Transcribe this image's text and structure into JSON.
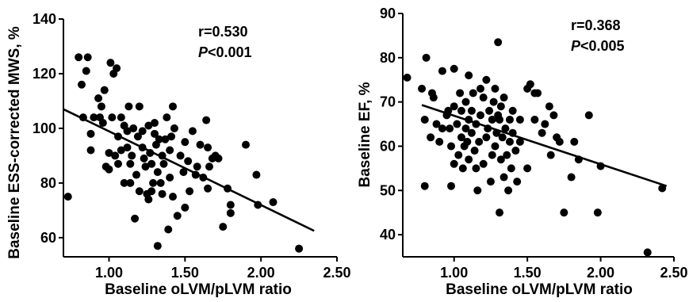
{
  "chart_data": [
    {
      "type": "scatter",
      "xlabel": "Baseline oLVM/pLVM ratio",
      "ylabel": "Baseline ESS-corrected MWS, %",
      "xlim": [
        0.7,
        2.5
      ],
      "ylim": [
        53,
        140
      ],
      "xticks": [
        "1.00",
        "1.50",
        "2.00",
        "2.50"
      ],
      "yticks": [
        "60",
        "80",
        "100",
        "120",
        "140"
      ],
      "annotation": {
        "r": "r=0.530",
        "p_italic": "P",
        "p_rest": "<0.001"
      },
      "trend_line": {
        "x": [
          0.7,
          2.35
        ],
        "y": [
          107,
          62.5
        ]
      },
      "points": [
        [
          0.73,
          75
        ],
        [
          0.8,
          126
        ],
        [
          0.82,
          116
        ],
        [
          0.83,
          104
        ],
        [
          0.85,
          121
        ],
        [
          0.86,
          126
        ],
        [
          0.88,
          98
        ],
        [
          0.88,
          92
        ],
        [
          0.9,
          104
        ],
        [
          0.93,
          111
        ],
        [
          0.94,
          104
        ],
        [
          0.95,
          108
        ],
        [
          0.96,
          102
        ],
        [
          0.97,
          114
        ],
        [
          0.98,
          86
        ],
        [
          1.0,
          91
        ],
        [
          1.0,
          85
        ],
        [
          1.01,
          124
        ],
        [
          1.02,
          104
        ],
        [
          1.03,
          120
        ],
        [
          1.04,
          90
        ],
        [
          1.05,
          122
        ],
        [
          1.06,
          87
        ],
        [
          1.06,
          97
        ],
        [
          1.08,
          104
        ],
        [
          1.08,
          92
        ],
        [
          1.1,
          101
        ],
        [
          1.1,
          80
        ],
        [
          1.12,
          99
        ],
        [
          1.12,
          93
        ],
        [
          1.13,
          108
        ],
        [
          1.14,
          87
        ],
        [
          1.14,
          80
        ],
        [
          1.15,
          90
        ],
        [
          1.16,
          100
        ],
        [
          1.17,
          67
        ],
        [
          1.18,
          83
        ],
        [
          1.19,
          97
        ],
        [
          1.2,
          108
        ],
        [
          1.2,
          77
        ],
        [
          1.22,
          99
        ],
        [
          1.22,
          93
        ],
        [
          1.23,
          89
        ],
        [
          1.24,
          86
        ],
        [
          1.25,
          76
        ],
        [
          1.26,
          74
        ],
        [
          1.26,
          101
        ],
        [
          1.27,
          91
        ],
        [
          1.28,
          87
        ],
        [
          1.28,
          77
        ],
        [
          1.29,
          80
        ],
        [
          1.3,
          102
        ],
        [
          1.3,
          98
        ],
        [
          1.31,
          94
        ],
        [
          1.32,
          57
        ],
        [
          1.32,
          84
        ],
        [
          1.33,
          96
        ],
        [
          1.34,
          80
        ],
        [
          1.35,
          76
        ],
        [
          1.35,
          90
        ],
        [
          1.36,
          87
        ],
        [
          1.37,
          96
        ],
        [
          1.38,
          104
        ],
        [
          1.39,
          63
        ],
        [
          1.4,
          92
        ],
        [
          1.4,
          82
        ],
        [
          1.41,
          97
        ],
        [
          1.42,
          108
        ],
        [
          1.42,
          75
        ],
        [
          1.43,
          100
        ],
        [
          1.45,
          68
        ],
        [
          1.47,
          90
        ],
        [
          1.49,
          84
        ],
        [
          1.5,
          95
        ],
        [
          1.5,
          71
        ],
        [
          1.52,
          88
        ],
        [
          1.53,
          77
        ],
        [
          1.55,
          99
        ],
        [
          1.57,
          83
        ],
        [
          1.58,
          86
        ],
        [
          1.6,
          94
        ],
        [
          1.62,
          82
        ],
        [
          1.64,
          103
        ],
        [
          1.65,
          93
        ],
        [
          1.65,
          78
        ],
        [
          1.66,
          86
        ],
        [
          1.68,
          89
        ],
        [
          1.7,
          90
        ],
        [
          1.72,
          89
        ],
        [
          1.75,
          64
        ],
        [
          1.78,
          78
        ],
        [
          1.8,
          72
        ],
        [
          1.8,
          69
        ],
        [
          1.9,
          94
        ],
        [
          1.97,
          83
        ],
        [
          1.98,
          72
        ],
        [
          2.08,
          73
        ],
        [
          2.25,
          56
        ]
      ]
    },
    {
      "type": "scatter",
      "xlabel": "Baseline oLVM/pLVM ratio",
      "ylabel": "Baseline EF, %",
      "xlim": [
        0.65,
        2.5
      ],
      "ylim": [
        35,
        90
      ],
      "xticks": [
        "1.00",
        "1.50",
        "2.00",
        "2.50"
      ],
      "yticks": [
        "40",
        "50",
        "60",
        "70",
        "80",
        "90"
      ],
      "annotation": {
        "r": "r=0.368",
        "p_italic": "P",
        "p_rest": "<0.005"
      },
      "trend_line": {
        "x": [
          0.78,
          2.45
        ],
        "y": [
          69.3,
          51
        ]
      },
      "points": [
        [
          0.68,
          75.5
        ],
        [
          0.78,
          73
        ],
        [
          0.8,
          51
        ],
        [
          0.8,
          66
        ],
        [
          0.81,
          80
        ],
        [
          0.84,
          62
        ],
        [
          0.85,
          72
        ],
        [
          0.86,
          71
        ],
        [
          0.88,
          65
        ],
        [
          0.9,
          61
        ],
        [
          0.92,
          64
        ],
        [
          0.92,
          77
        ],
        [
          0.95,
          67
        ],
        [
          0.96,
          68
        ],
        [
          0.97,
          64
        ],
        [
          0.98,
          51
        ],
        [
          0.98,
          60
        ],
        [
          1.0,
          77.5
        ],
        [
          1.0,
          69
        ],
        [
          1.0,
          56
        ],
        [
          1.02,
          65
        ],
        [
          1.03,
          58
        ],
        [
          1.04,
          72
        ],
        [
          1.05,
          62
        ],
        [
          1.05,
          68
        ],
        [
          1.06,
          55
        ],
        [
          1.07,
          60
        ],
        [
          1.08,
          70
        ],
        [
          1.08,
          64
        ],
        [
          1.09,
          61
        ],
        [
          1.1,
          76
        ],
        [
          1.1,
          66
        ],
        [
          1.1,
          57
        ],
        [
          1.12,
          63
        ],
        [
          1.12,
          68
        ],
        [
          1.13,
          72
        ],
        [
          1.14,
          59
        ],
        [
          1.15,
          65
        ],
        [
          1.15,
          55
        ],
        [
          1.16,
          50
        ],
        [
          1.17,
          61
        ],
        [
          1.18,
          73
        ],
        [
          1.18,
          67
        ],
        [
          1.2,
          56
        ],
        [
          1.2,
          71
        ],
        [
          1.22,
          62
        ],
        [
          1.22,
          75
        ],
        [
          1.23,
          64
        ],
        [
          1.24,
          68
        ],
        [
          1.25,
          52
        ],
        [
          1.26,
          58
        ],
        [
          1.26,
          66
        ],
        [
          1.27,
          70
        ],
        [
          1.28,
          73
        ],
        [
          1.28,
          60
        ],
        [
          1.29,
          63
        ],
        [
          1.3,
          67
        ],
        [
          1.3,
          83.5
        ],
        [
          1.31,
          45
        ],
        [
          1.31,
          66
        ],
        [
          1.32,
          57
        ],
        [
          1.32,
          69
        ],
        [
          1.33,
          62
        ],
        [
          1.34,
          53
        ],
        [
          1.34,
          71
        ],
        [
          1.35,
          64
        ],
        [
          1.36,
          58
        ],
        [
          1.37,
          50
        ],
        [
          1.38,
          66
        ],
        [
          1.38,
          61
        ],
        [
          1.39,
          55
        ],
        [
          1.4,
          68
        ],
        [
          1.4,
          63
        ],
        [
          1.42,
          59
        ],
        [
          1.43,
          52
        ],
        [
          1.45,
          66
        ],
        [
          1.45,
          61
        ],
        [
          1.5,
          73
        ],
        [
          1.5,
          55
        ],
        [
          1.52,
          74
        ],
        [
          1.55,
          72
        ],
        [
          1.55,
          66
        ],
        [
          1.57,
          72
        ],
        [
          1.6,
          63
        ],
        [
          1.62,
          65
        ],
        [
          1.65,
          69
        ],
        [
          1.66,
          58
        ],
        [
          1.68,
          67
        ],
        [
          1.7,
          62
        ],
        [
          1.72,
          61
        ],
        [
          1.75,
          45
        ],
        [
          1.8,
          53
        ],
        [
          1.82,
          61
        ],
        [
          1.85,
          57
        ],
        [
          1.92,
          67
        ],
        [
          1.98,
          45
        ],
        [
          2.0,
          55.5
        ],
        [
          2.32,
          36
        ],
        [
          2.42,
          50.5
        ]
      ]
    }
  ]
}
